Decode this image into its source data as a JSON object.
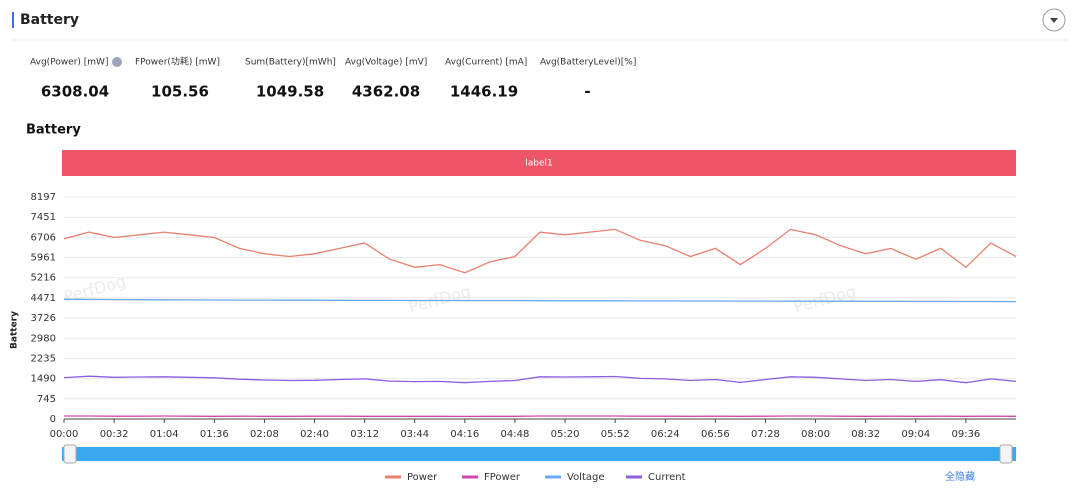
{
  "header": {
    "title": "Battery"
  },
  "metrics": [
    {
      "label": "Avg(Power) [mW]",
      "value": 6308.04
    },
    {
      "label": "FPower(功耗) [mW]",
      "value": 105.56
    },
    {
      "label": "Sum(Battery)[mWh]",
      "value": 1049.58
    },
    {
      "label": "Avg(Voltage) [mV]",
      "value": 4362.08
    },
    {
      "label": "Avg(Current) [mA]",
      "value": 1446.19
    },
    {
      "label": "Avg(BatteryLevel)[%]",
      "value": "-"
    }
  ],
  "chart_data": {
    "type": "line",
    "title": "Battery",
    "band_label": "label1",
    "ylabel": "Battery",
    "watermark": "PerfDog",
    "hide_all": "全隐藏",
    "x": [
      "00:00",
      null,
      "00:32",
      null,
      "01:04",
      null,
      "01:36",
      null,
      "02:08",
      null,
      "02:40",
      null,
      "03:12",
      null,
      "03:44",
      null,
      "04:16",
      null,
      "04:48",
      null,
      "05:20",
      null,
      "05:52",
      null,
      "06:24",
      null,
      "06:56",
      null,
      "07:28",
      null,
      "08:00",
      null,
      "08:32",
      null,
      "09:04",
      null,
      "09:36",
      null,
      null
    ],
    "ylim": [
      0,
      8197
    ],
    "yticks": [
      0,
      745,
      1490,
      2235,
      2980,
      3726,
      4471,
      5216,
      5961,
      6706,
      7451,
      8197
    ],
    "series": [
      {
        "name": "Power",
        "color": "#e8806c",
        "values": [
          6650,
          6900,
          6700,
          6800,
          6900,
          6800,
          6700,
          6300,
          6100,
          6000,
          6100,
          6300,
          6500,
          5900,
          5600,
          5700,
          5400,
          5800,
          6000,
          6900,
          6800,
          6900,
          7000,
          6600,
          6400,
          6000,
          6300,
          5700,
          6300,
          7000,
          6800,
          6400,
          6100,
          6300,
          5900,
          6300,
          5600,
          6500,
          6000
        ]
      },
      {
        "name": "FPower",
        "color": "#d048b0",
        "values": [
          110,
          110,
          105,
          105,
          110,
          105,
          100,
          105,
          100,
          100,
          105,
          105,
          100,
          100,
          100,
          100,
          95,
          100,
          100,
          110,
          110,
          110,
          110,
          105,
          105,
          100,
          105,
          100,
          105,
          110,
          110,
          105,
          100,
          105,
          100,
          105,
          100,
          105,
          100
        ]
      },
      {
        "name": "Voltage",
        "color": "#6aa8f8",
        "values": [
          4420,
          4415,
          4410,
          4405,
          4400,
          4398,
          4395,
          4392,
          4390,
          4388,
          4385,
          4383,
          4380,
          4378,
          4376,
          4375,
          4373,
          4372,
          4370,
          4368,
          4366,
          4365,
          4363,
          4361,
          4360,
          4358,
          4356,
          4355,
          4353,
          4351,
          4350,
          4348,
          4346,
          4345,
          4343,
          4341,
          4340,
          4338,
          4336
        ]
      },
      {
        "name": "Current",
        "color": "#8b5ee0",
        "values": [
          1530,
          1580,
          1540,
          1550,
          1560,
          1540,
          1520,
          1470,
          1440,
          1420,
          1430,
          1460,
          1480,
          1400,
          1380,
          1390,
          1340,
          1390,
          1420,
          1560,
          1550,
          1560,
          1570,
          1500,
          1480,
          1420,
          1460,
          1350,
          1460,
          1560,
          1540,
          1480,
          1420,
          1460,
          1390,
          1450,
          1340,
          1480,
          1390
        ]
      }
    ]
  }
}
